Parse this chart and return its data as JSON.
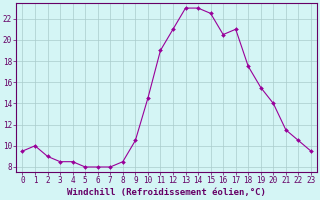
{
  "x": [
    0,
    1,
    2,
    3,
    4,
    5,
    6,
    7,
    8,
    9,
    10,
    11,
    12,
    13,
    14,
    15,
    16,
    17,
    18,
    19,
    20,
    21,
    22,
    23
  ],
  "y": [
    9.5,
    10.0,
    9.0,
    8.5,
    8.5,
    8.0,
    8.0,
    8.0,
    8.5,
    10.5,
    14.5,
    19.0,
    21.0,
    23.0,
    23.0,
    22.5,
    20.5,
    21.0,
    17.5,
    15.5,
    14.0,
    11.5,
    10.5,
    9.5
  ],
  "line_color": "#990099",
  "marker": "D",
  "marker_size": 2,
  "bg_color": "#d4f5f5",
  "grid_color": "#aacccc",
  "xlabel": "Windchill (Refroidissement éolien,°C)",
  "ylabel": "",
  "xlim": [
    -0.5,
    23.5
  ],
  "ylim": [
    7.5,
    23.5
  ],
  "yticks": [
    8,
    10,
    12,
    14,
    16,
    18,
    20,
    22
  ],
  "xticks": [
    0,
    1,
    2,
    3,
    4,
    5,
    6,
    7,
    8,
    9,
    10,
    11,
    12,
    13,
    14,
    15,
    16,
    17,
    18,
    19,
    20,
    21,
    22,
    23
  ],
  "line_color_dark": "#660066",
  "tick_fontsize": 5.5,
  "xlabel_fontsize": 6.5
}
